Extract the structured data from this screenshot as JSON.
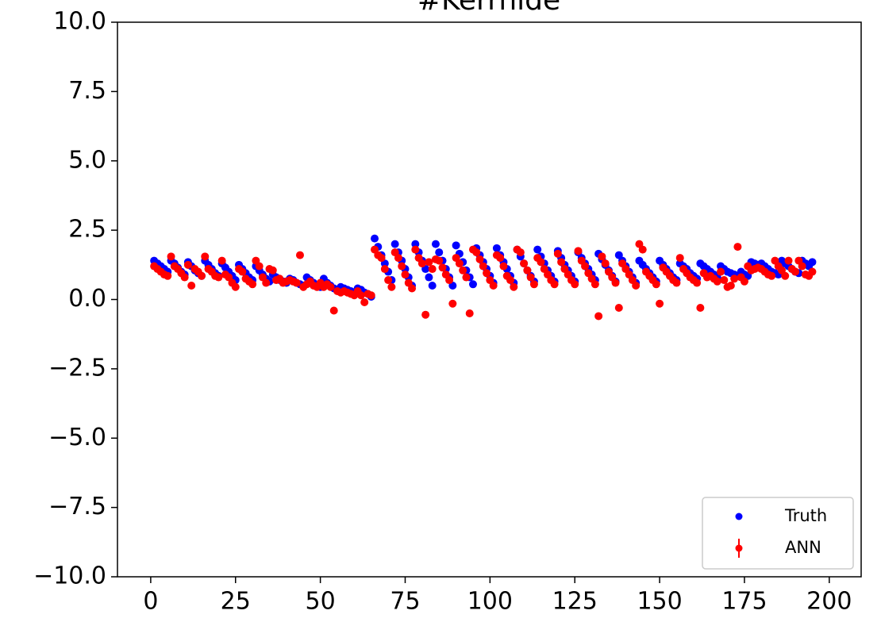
{
  "chart_data": {
    "type": "scatter",
    "title": "#Kerrhide",
    "x": [
      1,
      2,
      3,
      4,
      5,
      6,
      7,
      8,
      9,
      10,
      11,
      12,
      13,
      14,
      15,
      16,
      17,
      18,
      19,
      20,
      21,
      22,
      23,
      24,
      25,
      26,
      27,
      28,
      29,
      30,
      31,
      32,
      33,
      34,
      35,
      36,
      37,
      38,
      39,
      40,
      41,
      42,
      43,
      44,
      45,
      46,
      47,
      48,
      49,
      50,
      51,
      52,
      53,
      54,
      55,
      56,
      57,
      58,
      59,
      60,
      61,
      62,
      63,
      64,
      65,
      66,
      67,
      68,
      69,
      70,
      71,
      72,
      73,
      74,
      75,
      76,
      77,
      78,
      79,
      80,
      81,
      82,
      83,
      84,
      85,
      86,
      87,
      88,
      89,
      90,
      91,
      92,
      93,
      94,
      95,
      96,
      97,
      98,
      99,
      100,
      101,
      102,
      103,
      104,
      105,
      106,
      107,
      108,
      109,
      110,
      111,
      112,
      113,
      114,
      115,
      116,
      117,
      118,
      119,
      120,
      121,
      122,
      123,
      124,
      125,
      126,
      127,
      128,
      129,
      130,
      131,
      132,
      133,
      134,
      135,
      136,
      137,
      138,
      139,
      140,
      141,
      142,
      143,
      144,
      145,
      146,
      147,
      148,
      149,
      150,
      151,
      152,
      153,
      154,
      155,
      156,
      157,
      158,
      159,
      160,
      161,
      162,
      163,
      164,
      165,
      166,
      167,
      168,
      169,
      170,
      171,
      172,
      173,
      174,
      175,
      176,
      177,
      178,
      179,
      180,
      181,
      182,
      183,
      184,
      185,
      186,
      187,
      188,
      189,
      190,
      191,
      192,
      193,
      194,
      195
    ],
    "series": [
      {
        "name": "Truth",
        "color": "#0000ff",
        "values": [
          1.4,
          1.3,
          1.2,
          1.1,
          1.0,
          1.4,
          1.3,
          1.15,
          1.0,
          0.9,
          1.35,
          1.2,
          1.05,
          0.95,
          0.85,
          1.4,
          1.25,
          1.1,
          0.95,
          0.85,
          1.3,
          1.15,
          1.0,
          0.85,
          0.7,
          1.25,
          1.1,
          0.95,
          0.8,
          0.7,
          1.2,
          1.05,
          0.9,
          0.75,
          0.65,
          0.9,
          0.8,
          0.7,
          0.65,
          0.6,
          0.75,
          0.7,
          0.6,
          0.55,
          0.5,
          0.8,
          0.7,
          0.6,
          0.5,
          0.45,
          0.75,
          0.6,
          0.5,
          0.4,
          0.35,
          0.45,
          0.4,
          0.35,
          0.3,
          0.25,
          0.4,
          0.35,
          0.25,
          0.2,
          0.1,
          2.2,
          1.9,
          1.6,
          1.3,
          1.0,
          0.7,
          2.0,
          1.7,
          1.4,
          1.1,
          0.8,
          0.5,
          2.0,
          1.7,
          1.4,
          1.1,
          0.8,
          0.5,
          2.0,
          1.7,
          1.4,
          1.1,
          0.8,
          0.5,
          1.95,
          1.65,
          1.35,
          1.05,
          0.8,
          0.55,
          1.85,
          1.6,
          1.35,
          1.1,
          0.85,
          0.6,
          1.85,
          1.6,
          1.35,
          1.1,
          0.85,
          0.6,
          1.8,
          1.55,
          1.3,
          1.05,
          0.85,
          0.65,
          1.8,
          1.55,
          1.3,
          1.05,
          0.85,
          0.65,
          1.75,
          1.5,
          1.25,
          1.05,
          0.85,
          0.65,
          1.7,
          1.5,
          1.3,
          1.1,
          0.9,
          0.7,
          1.65,
          1.45,
          1.25,
          1.05,
          0.85,
          0.65,
          1.6,
          1.4,
          1.2,
          1.0,
          0.8,
          0.6,
          1.4,
          1.25,
          1.1,
          0.95,
          0.8,
          0.65,
          1.4,
          1.25,
          1.1,
          0.95,
          0.8,
          0.7,
          1.3,
          1.2,
          1.1,
          0.95,
          0.85,
          0.75,
          1.3,
          1.2,
          1.1,
          1.0,
          0.9,
          0.8,
          1.2,
          1.1,
          1.0,
          0.95,
          0.9,
          0.85,
          1.0,
          0.9,
          0.85,
          1.35,
          1.3,
          1.25,
          1.3,
          1.2,
          1.1,
          1.0,
          0.95,
          0.9,
          1.4,
          1.3,
          1.2,
          1.1,
          1.0,
          0.95,
          1.4,
          1.3,
          1.2,
          1.35
        ]
      },
      {
        "name": "ANN",
        "color": "#ff0000",
        "values": [
          1.2,
          1.1,
          1.0,
          0.9,
          0.85,
          1.55,
          1.2,
          1.1,
          0.95,
          0.8,
          1.25,
          0.5,
          1.1,
          1.0,
          0.85,
          1.55,
          1.1,
          1.0,
          0.85,
          0.8,
          1.4,
          0.9,
          0.8,
          0.6,
          0.45,
          1.1,
          1.0,
          0.75,
          0.65,
          0.55,
          1.4,
          1.2,
          0.8,
          0.6,
          1.1,
          1.05,
          0.7,
          0.75,
          0.6,
          0.65,
          0.7,
          0.65,
          0.6,
          1.6,
          0.45,
          0.55,
          0.65,
          0.5,
          0.45,
          0.6,
          0.45,
          0.55,
          0.45,
          -0.4,
          0.3,
          0.25,
          0.3,
          0.25,
          0.2,
          0.15,
          0.3,
          0.15,
          -0.1,
          0.2,
          0.15,
          1.8,
          1.6,
          1.5,
          1.1,
          0.7,
          0.45,
          1.7,
          1.5,
          1.2,
          0.9,
          0.6,
          0.4,
          1.8,
          1.5,
          1.3,
          -0.55,
          1.35,
          1.1,
          1.45,
          1.4,
          1.15,
          0.9,
          0.7,
          -0.15,
          1.5,
          1.3,
          1.05,
          0.8,
          -0.5,
          1.8,
          1.7,
          1.45,
          1.2,
          0.95,
          0.7,
          0.5,
          1.6,
          1.5,
          1.2,
          0.85,
          0.7,
          0.45,
          1.8,
          1.7,
          1.3,
          1.05,
          0.8,
          0.55,
          1.5,
          1.35,
          1.1,
          0.9,
          0.7,
          0.55,
          1.65,
          1.35,
          1.1,
          0.9,
          0.7,
          0.55,
          1.75,
          1.4,
          1.2,
          0.95,
          0.75,
          0.55,
          -0.6,
          1.55,
          1.3,
          1.0,
          0.8,
          0.6,
          -0.3,
          1.3,
          1.1,
          0.9,
          0.7,
          0.5,
          2.0,
          1.8,
          1.0,
          0.85,
          0.7,
          0.55,
          -0.15,
          1.15,
          1.0,
          0.85,
          0.7,
          0.6,
          1.5,
          1.1,
          0.95,
          0.8,
          0.7,
          0.6,
          -0.3,
          0.95,
          0.8,
          0.85,
          0.75,
          0.65,
          1.0,
          0.7,
          0.45,
          0.5,
          0.75,
          1.9,
          0.8,
          0.65,
          1.2,
          1.05,
          1.1,
          1.15,
          1.1,
          1.0,
          0.9,
          0.85,
          1.4,
          1.2,
          1.05,
          0.85,
          1.4,
          1.1,
          1.0,
          1.4,
          1.2,
          0.9,
          0.85,
          1.0
        ]
      }
    ],
    "xlim": [
      -9.8,
      209.4
    ],
    "xticks": [
      0,
      25,
      50,
      75,
      100,
      125,
      150,
      175,
      200
    ],
    "ylim": [
      -10,
      10
    ],
    "yticks": [
      {
        "value": 10,
        "label": "10.0"
      },
      7.5,
      {
        "value": 5,
        "label": "5.0"
      },
      2.5,
      {
        "value": 0,
        "label": "0.0"
      },
      {
        "value": -2.5,
        "label": "−2.5"
      },
      {
        "value": -5,
        "label": "−5.0"
      },
      {
        "value": -7.5,
        "label": "−7.5"
      },
      {
        "value": -10,
        "label": "−10.0"
      }
    ],
    "legend": "lower right"
  }
}
